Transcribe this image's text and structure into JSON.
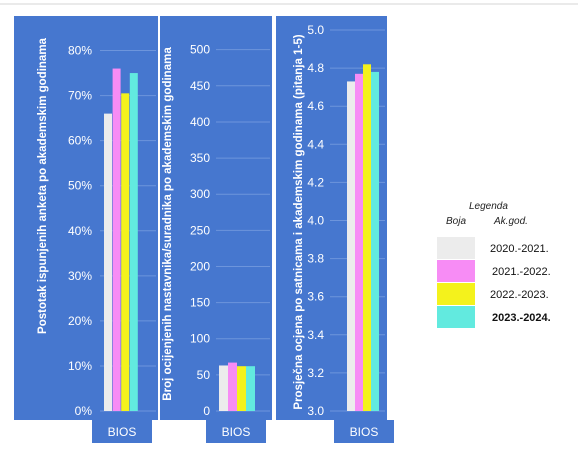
{
  "chart_data": [
    {
      "type": "bar",
      "ylabel": "Postotak ispunjenih anketa po akademskim godinama",
      "categories": [
        "BIOS"
      ],
      "ylim": [
        0,
        0.85
      ],
      "yticks": [
        "0%",
        "10%",
        "20%",
        "30%",
        "40%",
        "50%",
        "60%",
        "70%",
        "80%"
      ],
      "ytick_values": [
        0,
        0.1,
        0.2,
        0.3,
        0.4,
        0.5,
        0.6,
        0.7,
        0.8
      ],
      "series": [
        {
          "name": "2020.-2021.",
          "values": [
            0.66
          ]
        },
        {
          "name": "2021.-2022.",
          "values": [
            0.76
          ]
        },
        {
          "name": "2022.-2023.",
          "values": [
            0.705
          ]
        },
        {
          "name": "2023.-2024.",
          "values": [
            0.75
          ]
        }
      ]
    },
    {
      "type": "bar",
      "ylabel": "Broj ocijenjenih nastavnika/suradnika po akademskim godinama",
      "categories": [
        "BIOS"
      ],
      "ylim": [
        0,
        530
      ],
      "yticks": [
        "0",
        "50",
        "100",
        "150",
        "200",
        "250",
        "300",
        "350",
        "400",
        "450",
        "500"
      ],
      "ytick_values": [
        0,
        50,
        100,
        150,
        200,
        250,
        300,
        350,
        400,
        450,
        500
      ],
      "series": [
        {
          "name": "2020.-2021.",
          "values": [
            63
          ]
        },
        {
          "name": "2021.-2022.",
          "values": [
            67
          ]
        },
        {
          "name": "2022.-2023.",
          "values": [
            62
          ]
        },
        {
          "name": "2023.-2024.",
          "values": [
            62
          ]
        }
      ]
    },
    {
      "type": "bar",
      "ylabel": "Prosječna ocjena po satnicama i akademskim godinama (pitanja 1-5)",
      "categories": [
        "BIOS"
      ],
      "ylim": [
        3.0,
        5.0
      ],
      "yticks": [
        "3.0",
        "3.2",
        "3.4",
        "3.6",
        "3.8",
        "4.0",
        "4.2",
        "4.4",
        "4.6",
        "4.8",
        "5.0"
      ],
      "ytick_values": [
        3.0,
        3.2,
        3.4,
        3.6,
        3.8,
        4.0,
        4.2,
        4.4,
        4.6,
        4.8,
        5.0
      ],
      "series": [
        {
          "name": "2020.-2021.",
          "values": [
            4.73
          ]
        },
        {
          "name": "2021.-2022.",
          "values": [
            4.77
          ]
        },
        {
          "name": "2022.-2023.",
          "values": [
            4.82
          ]
        },
        {
          "name": "2023.-2024.",
          "values": [
            4.78
          ]
        }
      ]
    }
  ],
  "legend": {
    "title": "Legenda",
    "col_color": "Boja",
    "col_year": "Ak.god.",
    "items": [
      {
        "label": "2020.-2021.",
        "color": "#ececec",
        "bold": false
      },
      {
        "label": "2021.-2022.",
        "color": "#f78cf5",
        "bold": false
      },
      {
        "label": "2022.-2023.",
        "color": "#f4f21c",
        "bold": false
      },
      {
        "label": "2023.-2024.",
        "color": "#62eadf",
        "bold": true
      }
    ]
  },
  "colors": {
    "panel": "#4677cf",
    "grid": "#6d95dc",
    "bar_colors": [
      "#e1e4f2",
      "#cf78ee",
      "#cfe330",
      "#33d6bc"
    ]
  }
}
